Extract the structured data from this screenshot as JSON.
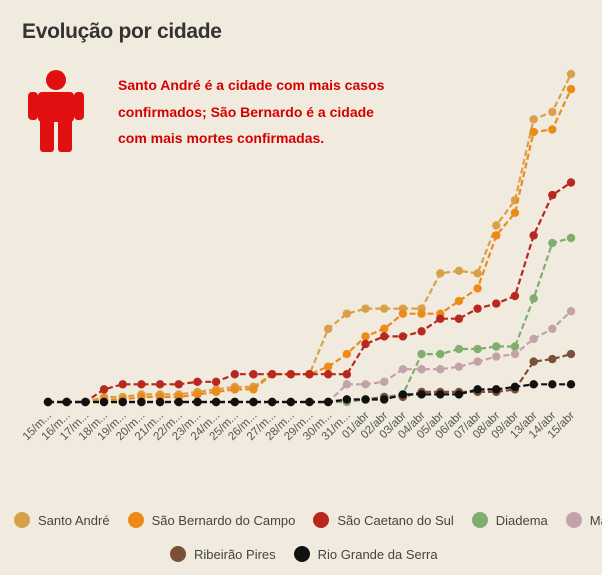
{
  "header": {
    "title": "Evolução por cidade",
    "callout": "Santo André é a cidade com mais casos confirmados; São Bernardo é a cidade com mais mortes confirmadas.",
    "icon": "person-icon",
    "icon_color": "#e01010"
  },
  "chart_data": {
    "type": "line",
    "categories": [
      "15/m...",
      "16/m...",
      "17/m...",
      "18/m...",
      "19/m...",
      "20/m...",
      "21/m...",
      "22/m...",
      "23/m...",
      "24/m...",
      "25/m...",
      "26/m...",
      "27/m...",
      "28/m...",
      "29/m...",
      "30/m...",
      "31/m...",
      "01/abr",
      "02/abr",
      "03/abr",
      "04/abr",
      "05/abr",
      "06/abr",
      "07/abr",
      "08/abr",
      "09/abr",
      "13/abr",
      "14/abr",
      "15/abr"
    ],
    "grid": false,
    "legend_position": "bottom",
    "series": [
      {
        "name": "Santo André",
        "color": "#d9a04a",
        "values": [
          0,
          0,
          0,
          2,
          2,
          3,
          3,
          3,
          4,
          5,
          6,
          6,
          11,
          11,
          11,
          29,
          35,
          37,
          37,
          37,
          37,
          51,
          52,
          51,
          70,
          80,
          112,
          115,
          130
        ]
      },
      {
        "name": "São Bernardo do Campo",
        "color": "#ec8a1a",
        "values": [
          0,
          0,
          0,
          1,
          1,
          2,
          2,
          2,
          3,
          4,
          5,
          5,
          11,
          11,
          11,
          14,
          19,
          26,
          29,
          35,
          35,
          35,
          40,
          45,
          66,
          75,
          107,
          108,
          124
        ]
      },
      {
        "name": "São Caetano do Sul",
        "color": "#b8281f",
        "values": [
          0,
          0,
          0,
          5,
          7,
          7,
          7,
          7,
          8,
          8,
          11,
          11,
          11,
          11,
          11,
          11,
          11,
          23,
          26,
          26,
          28,
          33,
          33,
          37,
          39,
          42,
          66,
          82,
          87
        ]
      },
      {
        "name": "Diadema",
        "color": "#7fae6f",
        "values": [
          0,
          0,
          0,
          0,
          0,
          0,
          0,
          0,
          0,
          0,
          0,
          0,
          0,
          0,
          0,
          0,
          0,
          1,
          2,
          3,
          19,
          19,
          21,
          21,
          22,
          22,
          41,
          63,
          65
        ]
      },
      {
        "name": "Mauá",
        "color": "#c4a2ab",
        "values": [
          0,
          0,
          0,
          0,
          0,
          0,
          0,
          0,
          0,
          0,
          0,
          0,
          0,
          0,
          0,
          0,
          7,
          7,
          8,
          13,
          13,
          13,
          14,
          16,
          18,
          19,
          25,
          29,
          36
        ]
      },
      {
        "name": "Ribeirão Pires",
        "color": "#7a5038",
        "values": [
          0,
          0,
          0,
          0,
          0,
          0,
          0,
          0,
          0,
          0,
          0,
          0,
          0,
          0,
          0,
          0,
          1,
          1,
          2,
          2,
          4,
          4,
          4,
          4,
          4,
          5,
          16,
          17,
          19
        ]
      },
      {
        "name": "Rio Grande da Serra",
        "color": "#111111",
        "values": [
          0,
          0,
          0,
          0,
          0,
          0,
          0,
          0,
          0,
          0,
          0,
          0,
          0,
          0,
          0,
          0,
          1,
          1,
          1,
          3,
          3,
          3,
          3,
          5,
          5,
          6,
          7,
          7,
          7
        ]
      }
    ]
  }
}
